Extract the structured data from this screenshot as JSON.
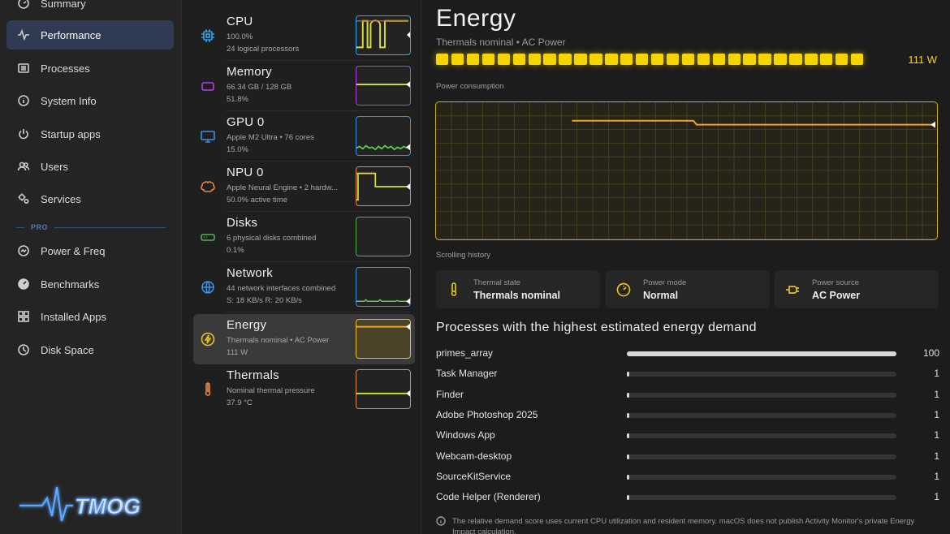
{
  "sidebar": {
    "items": [
      {
        "label": "Summary",
        "icon": "gauge-icon"
      },
      {
        "label": "Performance",
        "icon": "pulse-icon"
      },
      {
        "label": "Processes",
        "icon": "list-icon"
      },
      {
        "label": "System Info",
        "icon": "info-icon"
      },
      {
        "label": "Startup apps",
        "icon": "power-icon"
      },
      {
        "label": "Users",
        "icon": "users-icon"
      },
      {
        "label": "Services",
        "icon": "gears-icon"
      },
      {
        "label": "Power & Freq",
        "icon": "meter-icon"
      },
      {
        "label": "Benchmarks",
        "icon": "speedometer-icon"
      },
      {
        "label": "Installed Apps",
        "icon": "grid-icon"
      },
      {
        "label": "Disk Space",
        "icon": "clock-icon"
      }
    ],
    "active": "Performance",
    "section_label": "PRO",
    "logo_text": "TMOG"
  },
  "resources": [
    {
      "title": "CPU",
      "sub1": "100.0%",
      "sub2": "24 logical processors",
      "color": "#29a7e8",
      "icon": "cpu-chip-icon"
    },
    {
      "title": "Memory",
      "sub1": "66.34 GB / 128 GB",
      "sub2": "51.8%",
      "color": "#b040e0",
      "icon": "memory-icon"
    },
    {
      "title": "GPU 0",
      "sub1": "Apple M2 Ultra • 76 cores",
      "sub2": "15.0%",
      "color": "#3d8fe0",
      "icon": "monitor-icon"
    },
    {
      "title": "NPU 0",
      "sub1": "Apple Neural Engine • 2 hardw...",
      "sub2": "50.0% active time",
      "color": "#e8893a",
      "icon": "brain-icon"
    },
    {
      "title": "Disks",
      "sub1": "6 physical disks combined",
      "sub2": "0.1%",
      "color": "#4fb34f",
      "icon": "drive-icon"
    },
    {
      "title": "Network",
      "sub1": "44 network interfaces combined",
      "sub2": "S: 18 KB/s  R: 20 KB/s",
      "color": "#3d8fe0",
      "icon": "globe-icon"
    },
    {
      "title": "Energy",
      "sub1": "Thermals nominal • AC Power",
      "sub2": "111 W",
      "color": "#e6c21d",
      "icon": "bolt-icon"
    },
    {
      "title": "Thermals",
      "sub1": "Nominal thermal pressure",
      "sub2": "37.9 °C",
      "color": "#e8893a",
      "icon": "thermometer-icon"
    }
  ],
  "energy": {
    "title": "Energy",
    "subtitle": "Thermals nominal • AC Power",
    "watts": "111 W",
    "meter_level": 1.0,
    "chart_label": "Power consumption",
    "history_label": "Scrolling history",
    "stats": [
      {
        "label": "Thermal state",
        "value": "Thermals nominal",
        "icon": "thermometer-icon"
      },
      {
        "label": "Power mode",
        "value": "Normal",
        "icon": "gauge-icon"
      },
      {
        "label": "Power source",
        "value": "AC Power",
        "icon": "plug-icon"
      }
    ],
    "processes_title": "Processes with the highest estimated energy demand",
    "processes": [
      {
        "name": "primes_array",
        "value": "100",
        "level": 1.0
      },
      {
        "name": "Task Manager",
        "value": "1",
        "level": 0.01
      },
      {
        "name": "Finder",
        "value": "1",
        "level": 0.01
      },
      {
        "name": "Adobe Photoshop 2025",
        "value": "1",
        "level": 0.01
      },
      {
        "name": "Windows App",
        "value": "1",
        "level": 0.01
      },
      {
        "name": "Webcam-desktop",
        "value": "1",
        "level": 0.01
      },
      {
        "name": "SourceKitService",
        "value": "1",
        "level": 0.01
      },
      {
        "name": "Code Helper (Renderer)",
        "value": "1",
        "level": 0.01
      }
    ],
    "note": "The relative demand score uses current CPU utilization and resident memory. macOS does not publish Activity Monitor's private Energy Impact calculation."
  },
  "colors": {
    "accent_yellow": "#f5d400",
    "active_nav": "#2f3b52",
    "pro_blue": "#4f79c4"
  }
}
